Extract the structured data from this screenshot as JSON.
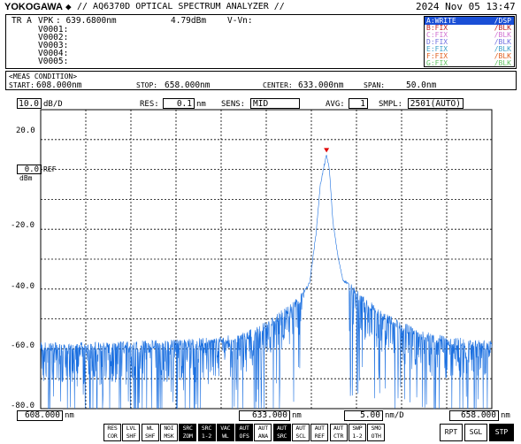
{
  "header": {
    "brand": "YOKOGAWA",
    "diamond": "◆",
    "title": "// AQ6370D OPTICAL SPECTRUM ANALYZER //",
    "datetime": "2024 Nov 05 13:47"
  },
  "markers": {
    "line1_label": "TR A",
    "line1_vpk": "VPK",
    "line1_value": ": 639.6800nm",
    "line1_level": "4.79dBm",
    "line1_delta": "V-Vn:",
    "lines": [
      "V0001:",
      "V0002:",
      "V0003:",
      "V0004:",
      "V0005:"
    ]
  },
  "traces": [
    {
      "name": "A:WRITE",
      "mode": "/DSP",
      "color": "#1a4fd6",
      "highlight": true
    },
    {
      "name": "B:FIX",
      "mode": "/BLK",
      "color": "#c02020",
      "highlight": false
    },
    {
      "name": "C:FIX",
      "mode": "/BLK",
      "color": "#d070d0",
      "highlight": false
    },
    {
      "name": "D:FIX",
      "mode": "/BLK",
      "color": "#7070e0",
      "highlight": false
    },
    {
      "name": "E:FIX",
      "mode": "/BLK",
      "color": "#3aa0c8",
      "highlight": false
    },
    {
      "name": "F:FIX",
      "mode": "/BLK",
      "color": "#e06020",
      "highlight": false
    },
    {
      "name": "G:FIX",
      "mode": "/BLK",
      "color": "#60c060",
      "highlight": false
    }
  ],
  "meas": {
    "label": "<MEAS CONDITION>",
    "start_label": "START:",
    "start_value": "608.000nm",
    "stop_label": "STOP:",
    "stop_value": "658.000nm",
    "center_label": "CENTER:",
    "center_value": "633.000nm",
    "span_label": "SPAN:",
    "span_value": "50.0nm"
  },
  "settings": {
    "scale_value": "10.0",
    "scale_unit": "dB/D",
    "res_label": "RES:",
    "res_value": "0.1",
    "res_unit": "nm",
    "sens_label": "SENS:",
    "sens_value": "MID",
    "avg_label": "AVG:",
    "avg_value": "1",
    "smpl_label": "SMPL:",
    "smpl_value": "2501(AUTO)"
  },
  "y_axis": {
    "ticks": [
      "20.0",
      "0.0",
      "-20.0",
      "-40.0",
      "-60.0",
      "-80.0"
    ],
    "ref_label": "REF",
    "unit": "dBm"
  },
  "bottom": {
    "start_value": "608.000",
    "start_unit": "nm",
    "center_value": "633.000",
    "center_unit": "nm",
    "per_div_value": "5.00",
    "per_div_unit": "nm/D",
    "stop_value": "658.000",
    "stop_unit": "nm"
  },
  "soft_keys": [
    {
      "l1": "RES",
      "l2": "COR",
      "inv": false
    },
    {
      "l1": "LVL",
      "l2": "SHF",
      "inv": false
    },
    {
      "l1": "WL",
      "l2": "SHF",
      "inv": false
    },
    {
      "l1": "NOI",
      "l2": "MSK",
      "inv": false
    },
    {
      "l1": "SRC",
      "l2": "ZOM",
      "inv": true
    },
    {
      "l1": "SRC",
      "l2": "1-2",
      "inv": true
    },
    {
      "l1": "VAC",
      "l2": "WL",
      "inv": true
    },
    {
      "l1": "AUT",
      "l2": "OFS",
      "inv": true
    },
    {
      "l1": "AUT",
      "l2": "ANA",
      "inv": false
    },
    {
      "l1": "AUT",
      "l2": "SRC",
      "inv": true
    },
    {
      "l1": "AUT",
      "l2": "SCL",
      "inv": false
    },
    {
      "l1": "AUT",
      "l2": "REF",
      "inv": false
    },
    {
      "l1": "AUT",
      "l2": "CTR",
      "inv": false
    },
    {
      "l1": "SWP",
      "l2": "1-2",
      "inv": false
    },
    {
      "l1": "SMO",
      "l2": "OTH",
      "inv": false
    }
  ],
  "sweep_keys": {
    "rpt": "RPT",
    "sgl": "SGL",
    "stp": "STP"
  },
  "chart_data": {
    "type": "line",
    "x_unit": "nm",
    "y_unit": "dBm",
    "xlim": [
      608,
      658
    ],
    "ylim": [
      -80,
      20
    ],
    "grid": true,
    "series": [
      {
        "trace": "A",
        "color": "#1a6fe0",
        "x": [
          608,
          613,
          618,
          623,
          626,
          628,
          630,
          631,
          632,
          633,
          634,
          635,
          636,
          637,
          637.8,
          638.5,
          639.0,
          639.4,
          639.68,
          640.0,
          640.4,
          641,
          641.5,
          642,
          643,
          644,
          645,
          646,
          648,
          650,
          653,
          658
        ],
        "y": [
          -59,
          -59,
          -58.5,
          -58,
          -57.5,
          -57,
          -56,
          -55,
          -53.5,
          -52,
          -50,
          -47.5,
          -45,
          -42,
          -38,
          -22,
          -5,
          1,
          4.79,
          0,
          -18,
          -30,
          -37,
          -38,
          -41.5,
          -44,
          -46.5,
          -49,
          -52,
          -55,
          -57,
          -58.5
        ]
      }
    ],
    "noise_floor_dbm": -59,
    "peak_marker": {
      "x": 639.68,
      "y": 4.79
    }
  }
}
